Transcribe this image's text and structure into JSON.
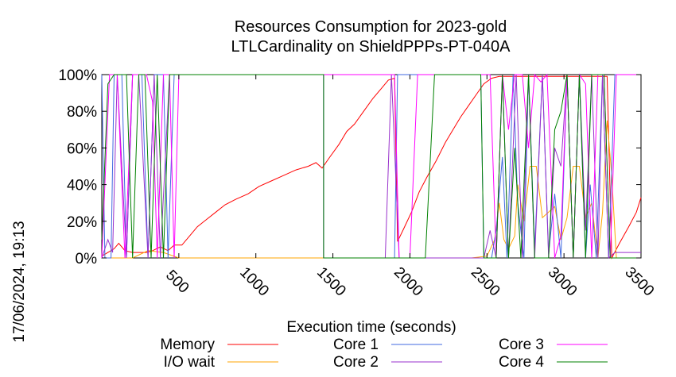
{
  "chart_data": {
    "type": "line",
    "title": "Resources Consumption for 2023-gold",
    "subtitle": "LTLCardinality on ShieldPPPs-PT-040A",
    "xlabel": "Execution time (seconds)",
    "ylabel": "",
    "timestamp": "17/06/2024, 19:13",
    "xlim": [
      0,
      3500
    ],
    "ylim": [
      0,
      100
    ],
    "x_ticks": [
      500,
      1000,
      1500,
      2000,
      2500,
      3000,
      3500
    ],
    "y_ticks": [
      0,
      20,
      40,
      60,
      80,
      100
    ],
    "x_tick_labels": [
      "500",
      "1000",
      "1500",
      "2000",
      "2500",
      "3000",
      "3500"
    ],
    "y_tick_labels": [
      "0%",
      "20%",
      "40%",
      "60%",
      "80%",
      "100%"
    ],
    "grid": false,
    "legend_position": "bottom",
    "series": [
      {
        "name": "Memory",
        "color": "#ff0000",
        "points": [
          [
            0,
            1
          ],
          [
            40,
            3
          ],
          [
            80,
            5
          ],
          [
            110,
            8
          ],
          [
            150,
            4
          ],
          [
            200,
            3
          ],
          [
            240,
            3
          ],
          [
            290,
            3
          ],
          [
            330,
            4
          ],
          [
            380,
            6
          ],
          [
            430,
            4
          ],
          [
            470,
            7
          ],
          [
            520,
            7
          ],
          [
            570,
            12
          ],
          [
            620,
            17
          ],
          [
            680,
            21
          ],
          [
            740,
            25
          ],
          [
            800,
            29
          ],
          [
            870,
            32
          ],
          [
            950,
            35
          ],
          [
            1020,
            39
          ],
          [
            1100,
            42
          ],
          [
            1180,
            45
          ],
          [
            1260,
            48
          ],
          [
            1340,
            50
          ],
          [
            1390,
            52
          ],
          [
            1430,
            49
          ],
          [
            1480,
            55
          ],
          [
            1540,
            62
          ],
          [
            1590,
            69
          ],
          [
            1640,
            73
          ],
          [
            1700,
            80
          ],
          [
            1760,
            87
          ],
          [
            1820,
            93
          ],
          [
            1860,
            97
          ],
          [
            1900,
            98
          ],
          [
            1920,
            9
          ],
          [
            1960,
            16
          ],
          [
            2010,
            25
          ],
          [
            2060,
            36
          ],
          [
            2110,
            44
          ],
          [
            2170,
            53
          ],
          [
            2230,
            63
          ],
          [
            2280,
            70
          ],
          [
            2330,
            77
          ],
          [
            2380,
            83
          ],
          [
            2430,
            89
          ],
          [
            2480,
            95
          ],
          [
            2530,
            98
          ],
          [
            2580,
            99
          ],
          [
            2700,
            99
          ],
          [
            2850,
            99
          ],
          [
            3000,
            99
          ],
          [
            3150,
            99
          ],
          [
            3280,
            99
          ],
          [
            3310,
            0
          ],
          [
            3360,
            8
          ],
          [
            3420,
            17
          ],
          [
            3470,
            25
          ],
          [
            3500,
            33
          ]
        ]
      },
      {
        "name": "I/O wait",
        "color": "#ffa500",
        "points": [
          [
            0,
            0
          ],
          [
            100,
            0
          ],
          [
            200,
            0
          ],
          [
            300,
            4
          ],
          [
            400,
            3
          ],
          [
            500,
            0
          ],
          [
            800,
            0
          ],
          [
            1500,
            0
          ],
          [
            2000,
            0
          ],
          [
            2400,
            0
          ],
          [
            2500,
            1
          ],
          [
            2550,
            10
          ],
          [
            2580,
            30
          ],
          [
            2610,
            10
          ],
          [
            2640,
            5
          ],
          [
            2680,
            12
          ],
          [
            2700,
            40
          ],
          [
            2740,
            20
          ],
          [
            2780,
            50
          ],
          [
            2820,
            50
          ],
          [
            2860,
            22
          ],
          [
            2900,
            25
          ],
          [
            2940,
            28
          ],
          [
            2980,
            10
          ],
          [
            3020,
            22
          ],
          [
            3060,
            50
          ],
          [
            3100,
            50
          ],
          [
            3140,
            22
          ],
          [
            3180,
            30
          ],
          [
            3220,
            0
          ],
          [
            3250,
            25
          ],
          [
            3280,
            75
          ],
          [
            3310,
            45
          ],
          [
            3340,
            0
          ],
          [
            3500,
            0
          ]
        ]
      },
      {
        "name": "Core 1",
        "color": "#4169e1",
        "points": [
          [
            0,
            100
          ],
          [
            20,
            0
          ],
          [
            60,
            0
          ],
          [
            80,
            100
          ],
          [
            130,
            100
          ],
          [
            160,
            0
          ],
          [
            200,
            100
          ],
          [
            260,
            100
          ],
          [
            300,
            0
          ],
          [
            340,
            100
          ],
          [
            400,
            100
          ],
          [
            430,
            0
          ],
          [
            470,
            100
          ],
          [
            1440,
            100
          ],
          [
            1440,
            0
          ],
          [
            1900,
            0
          ],
          [
            1920,
            100
          ],
          [
            2460,
            100
          ],
          [
            2480,
            0
          ],
          [
            2530,
            0
          ],
          [
            2560,
            15
          ],
          [
            2600,
            55
          ],
          [
            2630,
            0
          ],
          [
            2670,
            100
          ],
          [
            2700,
            30
          ],
          [
            2740,
            0
          ],
          [
            2770,
            100
          ],
          [
            2810,
            5
          ],
          [
            2860,
            100
          ],
          [
            2900,
            2
          ],
          [
            2940,
            35
          ],
          [
            2980,
            0
          ],
          [
            3020,
            100
          ],
          [
            3060,
            0
          ],
          [
            3100,
            100
          ],
          [
            3140,
            0
          ],
          [
            3170,
            40
          ],
          [
            3210,
            0
          ],
          [
            3250,
            100
          ],
          [
            3290,
            0
          ],
          [
            3330,
            100
          ],
          [
            3500,
            100
          ]
        ]
      },
      {
        "name": "Core 2",
        "color": "#9932cc",
        "points": [
          [
            0,
            0
          ],
          [
            40,
            10
          ],
          [
            70,
            3
          ],
          [
            100,
            100
          ],
          [
            160,
            0
          ],
          [
            200,
            100
          ],
          [
            240,
            100
          ],
          [
            300,
            0
          ],
          [
            340,
            100
          ],
          [
            380,
            0
          ],
          [
            440,
            100
          ],
          [
            470,
            100
          ],
          [
            1440,
            100
          ],
          [
            1440,
            0
          ],
          [
            1840,
            0
          ],
          [
            1880,
            100
          ],
          [
            1930,
            0
          ],
          [
            2480,
            0
          ],
          [
            2520,
            15
          ],
          [
            2560,
            0
          ],
          [
            2600,
            100
          ],
          [
            2640,
            0
          ],
          [
            2690,
            100
          ],
          [
            2730,
            0
          ],
          [
            2770,
            100
          ],
          [
            2810,
            0
          ],
          [
            2860,
            100
          ],
          [
            2900,
            0
          ],
          [
            2940,
            60
          ],
          [
            2980,
            50
          ],
          [
            3020,
            100
          ],
          [
            3060,
            0
          ],
          [
            3100,
            100
          ],
          [
            3140,
            15
          ],
          [
            3180,
            100
          ],
          [
            3220,
            0
          ],
          [
            3250,
            100
          ],
          [
            3290,
            0
          ],
          [
            3330,
            3
          ],
          [
            3500,
            3
          ]
        ]
      },
      {
        "name": "Core 3",
        "color": "#ff00ff",
        "points": [
          [
            0,
            0
          ],
          [
            50,
            100
          ],
          [
            100,
            100
          ],
          [
            150,
            0
          ],
          [
            200,
            100
          ],
          [
            290,
            100
          ],
          [
            330,
            85
          ],
          [
            360,
            0
          ],
          [
            400,
            100
          ],
          [
            440,
            100
          ],
          [
            470,
            0
          ],
          [
            500,
            100
          ],
          [
            1440,
            100
          ],
          [
            1900,
            100
          ],
          [
            1930,
            0
          ],
          [
            2000,
            0
          ],
          [
            2050,
            100
          ],
          [
            2460,
            100
          ],
          [
            2520,
            100
          ],
          [
            2560,
            0
          ],
          [
            2600,
            100
          ],
          [
            2640,
            70
          ],
          [
            2680,
            100
          ],
          [
            2730,
            100
          ],
          [
            2770,
            60
          ],
          [
            2810,
            100
          ],
          [
            2850,
            96
          ],
          [
            2890,
            100
          ],
          [
            2940,
            0
          ],
          [
            2980,
            12
          ],
          [
            3020,
            100
          ],
          [
            3060,
            0
          ],
          [
            3100,
            100
          ],
          [
            3140,
            95
          ],
          [
            3180,
            0
          ],
          [
            3220,
            100
          ],
          [
            3260,
            100
          ],
          [
            3300,
            0
          ],
          [
            3340,
            100
          ],
          [
            3500,
            100
          ]
        ]
      },
      {
        "name": "Core 4",
        "color": "#008000",
        "points": [
          [
            0,
            10
          ],
          [
            40,
            95
          ],
          [
            80,
            100
          ],
          [
            160,
            100
          ],
          [
            200,
            0
          ],
          [
            240,
            100
          ],
          [
            280,
            100
          ],
          [
            320,
            0
          ],
          [
            360,
            100
          ],
          [
            400,
            0
          ],
          [
            440,
            100
          ],
          [
            1440,
            100
          ],
          [
            1440,
            0
          ],
          [
            2100,
            0
          ],
          [
            2160,
            100
          ],
          [
            2460,
            100
          ],
          [
            2480,
            0
          ],
          [
            2560,
            0
          ],
          [
            2600,
            100
          ],
          [
            2640,
            0
          ],
          [
            2680,
            60
          ],
          [
            2720,
            0
          ],
          [
            2770,
            100
          ],
          [
            2810,
            0
          ],
          [
            2860,
            0
          ],
          [
            2900,
            0
          ],
          [
            2940,
            70
          ],
          [
            2980,
            80
          ],
          [
            3020,
            100
          ],
          [
            3060,
            0
          ],
          [
            3100,
            100
          ],
          [
            3140,
            0
          ],
          [
            3180,
            100
          ],
          [
            3220,
            100
          ],
          [
            3260,
            100
          ],
          [
            3300,
            0
          ],
          [
            3340,
            0
          ],
          [
            3500,
            0
          ]
        ]
      }
    ]
  }
}
